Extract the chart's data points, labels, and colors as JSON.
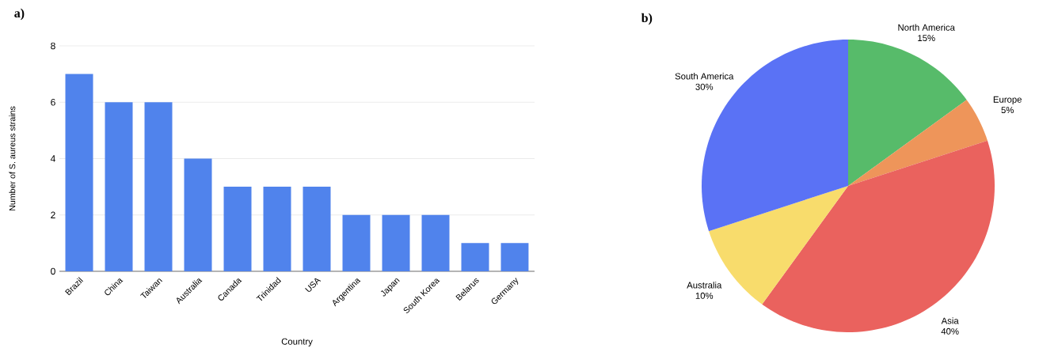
{
  "chart_data": [
    {
      "type": "bar",
      "title": "a)",
      "xlabel": "Country",
      "ylabel": "Number of S. aureus strains",
      "categories": [
        "Brazil",
        "China",
        "Taiwan",
        "Australia",
        "Canada",
        "Trinidad",
        "USA",
        "Argentina",
        "Japan",
        "South Korea",
        "Belarus",
        "Germany"
      ],
      "values": [
        7,
        6,
        6,
        4,
        3,
        3,
        3,
        2,
        2,
        2,
        1,
        1
      ],
      "color": "#5083ec",
      "ylim": [
        0,
        8
      ],
      "yticks": [
        0,
        2,
        4,
        6,
        8
      ],
      "grid": "y"
    },
    {
      "type": "pie",
      "title": "b)",
      "categories": [
        "North America",
        "Europe",
        "Asia",
        "Australia",
        "South America"
      ],
      "values": [
        15,
        5,
        40,
        10,
        30
      ],
      "colors": [
        "#57bb6a",
        "#ee955a",
        "#ea625e",
        "#f8dc6c",
        "#5a72f5"
      ],
      "value_labels": [
        "15%",
        "5%",
        "40%",
        "10%",
        "30%"
      ]
    }
  ]
}
